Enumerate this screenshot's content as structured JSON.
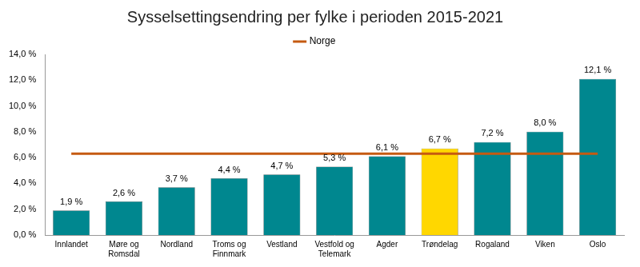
{
  "chart_data": {
    "type": "bar",
    "title": "Sysselsettingsendring per fylke i perioden 2015-2021",
    "categories": [
      "Innlandet",
      "Møre og Romsdal",
      "Nordland",
      "Troms og Finnmark",
      "Vestland",
      "Vestfold og Telemark",
      "Agder",
      "Trøndelag",
      "Rogaland",
      "Viken",
      "Oslo"
    ],
    "series": [
      {
        "type": "bar",
        "colors": [
          "#00878f",
          "#00878f",
          "#00878f",
          "#00878f",
          "#00878f",
          "#00878f",
          "#00878f",
          "#ffd700",
          "#00878f",
          "#00878f",
          "#00878f"
        ],
        "values": [
          1.9,
          2.6,
          3.7,
          4.4,
          4.7,
          5.3,
          6.1,
          6.7,
          7.2,
          8.0,
          12.1
        ],
        "value_labels": [
          "1,9 %",
          "2,6 %",
          "3,7 %",
          "4,4 %",
          "4,7 %",
          "5,3 %",
          "6,1 %",
          "6,7 %",
          "7,2 %",
          "8,0 %",
          "12,1 %"
        ]
      },
      {
        "name": "Norge",
        "type": "line",
        "color": "#c55a11",
        "values": [
          6.3,
          6.3,
          6.3,
          6.3,
          6.3,
          6.3,
          6.3,
          6.3,
          6.3,
          6.3,
          6.3
        ]
      }
    ],
    "ylim": [
      0,
      14
    ],
    "yticks": [
      {
        "value": 0,
        "label": "0,0 %"
      },
      {
        "value": 2,
        "label": "2,0 %"
      },
      {
        "value": 4,
        "label": "4,0 %"
      },
      {
        "value": 6,
        "label": "6,0 %"
      },
      {
        "value": 8,
        "label": "8,0 %"
      },
      {
        "value": 10,
        "label": "10,0 %"
      },
      {
        "value": 12,
        "label": "12,0 %"
      },
      {
        "value": 14,
        "label": "14,0 %"
      }
    ],
    "grid": false,
    "legend": "top",
    "data_labels": true
  }
}
